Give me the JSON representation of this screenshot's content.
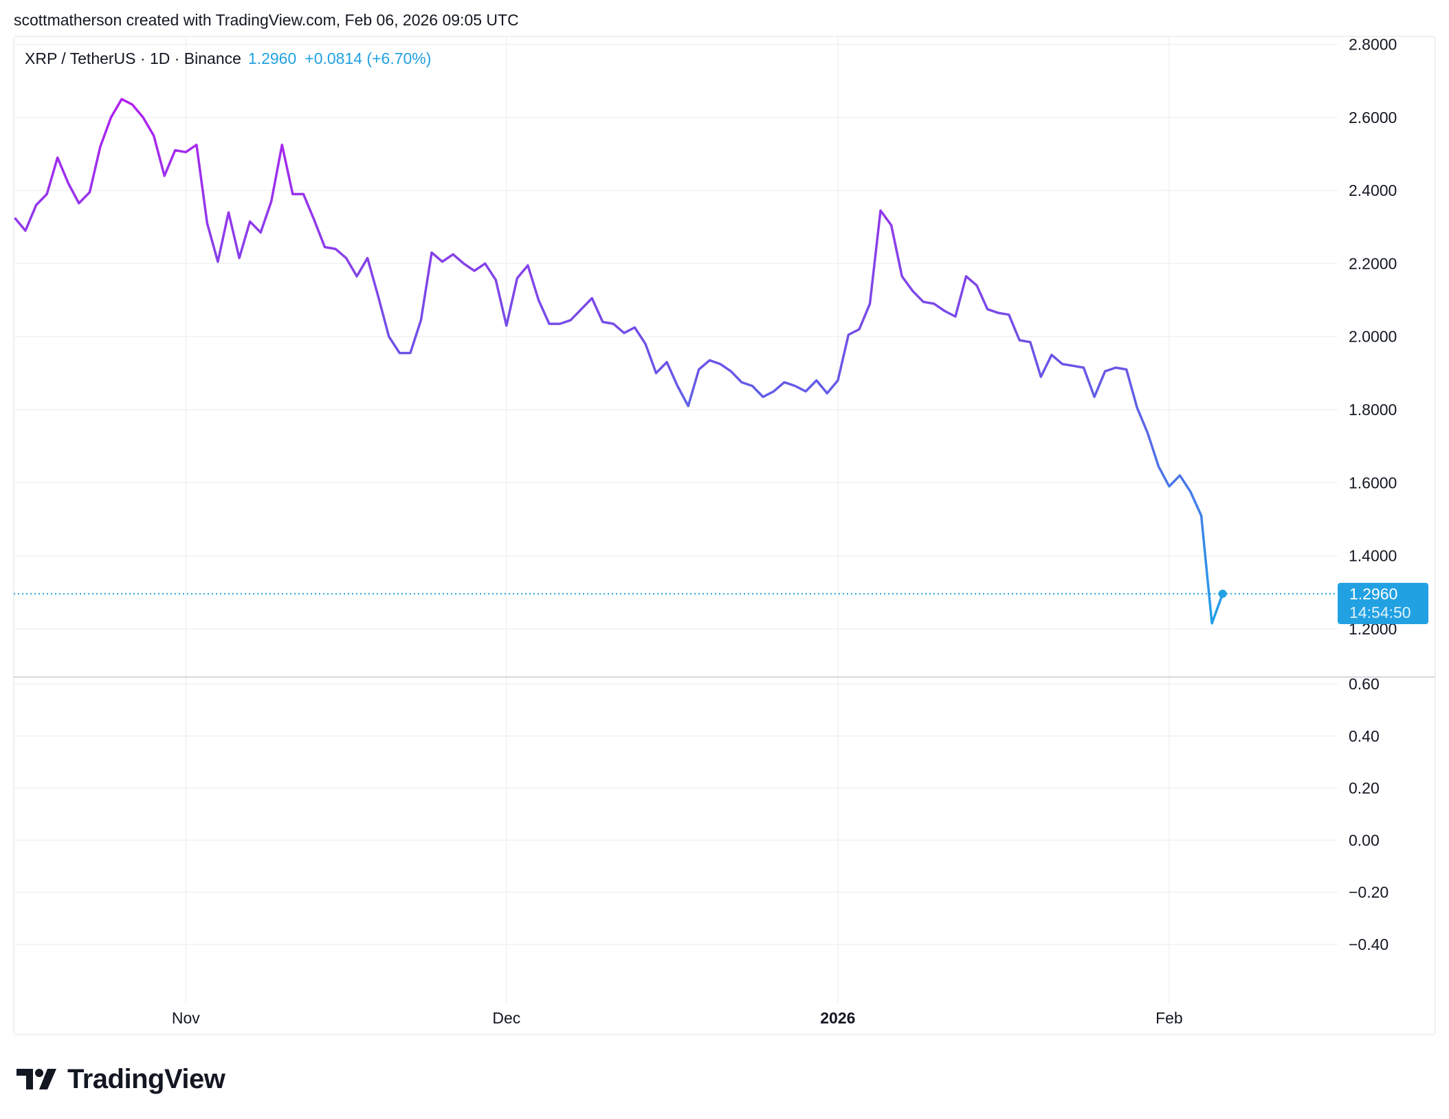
{
  "credit": "scottmatherson created with TradingView.com, Feb 06, 2026 09:05 UTC",
  "legend": {
    "symbol": "XRP / TetherUS · 1D · Binance",
    "last": "1.2960",
    "change": "+0.0814 (+6.70%)"
  },
  "price_tag": {
    "price": "1.2960",
    "countdown": "14:54:50"
  },
  "logo": {
    "text": "TradingView"
  },
  "colors": {
    "line_high": "#b21ff0",
    "line_mid": "#6b55e6",
    "line_low": "#1fa3e8",
    "accent": "#22a1e2",
    "grid": "#f0f1f3"
  },
  "chart_data": [
    {
      "type": "line",
      "title": "",
      "start_date": "2025-10-16",
      "end_date": "2026-02-06",
      "interval": "1D",
      "ylim": [
        1.1,
        2.85
      ],
      "y_ticks": [
        "2.8000",
        "2.6000",
        "2.4000",
        "2.2000",
        "2.0000",
        "1.8000",
        "1.6000",
        "1.4000",
        "1.2000"
      ],
      "x_ticks": [
        {
          "label": "Nov",
          "date": "2025-11-01",
          "bold": false
        },
        {
          "label": "Dec",
          "date": "2025-12-01",
          "bold": false
        },
        {
          "label": "2026",
          "date": "2026-01-01",
          "bold": true
        },
        {
          "label": "Feb",
          "date": "2026-02-01",
          "bold": false
        }
      ],
      "grid": true,
      "last_value": 1.296,
      "series": [
        {
          "values": [
            2.325,
            2.29,
            2.36,
            2.39,
            2.49,
            2.42,
            2.365,
            2.395,
            2.52,
            2.6,
            2.65,
            2.635,
            2.6,
            2.55,
            2.44,
            2.51,
            2.505,
            2.525,
            2.31,
            2.205,
            2.34,
            2.215,
            2.315,
            2.285,
            2.37,
            2.525,
            2.39,
            2.39,
            2.32,
            2.245,
            2.24,
            2.215,
            2.165,
            2.215,
            2.11,
            2.0,
            1.955,
            1.955,
            2.045,
            2.23,
            2.205,
            2.225,
            2.2,
            2.18,
            2.2,
            2.155,
            2.03,
            2.16,
            2.195,
            2.1,
            2.035,
            2.035,
            2.045,
            2.075,
            2.105,
            2.04,
            2.035,
            2.01,
            2.025,
            1.98,
            1.9,
            1.93,
            1.865,
            1.81,
            1.91,
            1.935,
            1.925,
            1.905,
            1.875,
            1.865,
            1.835,
            1.85,
            1.875,
            1.865,
            1.85,
            1.88,
            1.845,
            1.88,
            2.005,
            2.02,
            2.09,
            2.345,
            2.305,
            2.165,
            2.125,
            2.095,
            2.09,
            2.07,
            2.055,
            2.165,
            2.14,
            2.075,
            2.065,
            2.06,
            1.99,
            1.985,
            1.89,
            1.95,
            1.925,
            1.92,
            1.915,
            1.835,
            1.905,
            1.915,
            1.91,
            1.805,
            1.735,
            1.645,
            1.59,
            1.62,
            1.575,
            1.51,
            1.215,
            1.296
          ]
        }
      ]
    },
    {
      "type": "line",
      "title": "",
      "y_ticks": [
        "0.60",
        "0.40",
        "0.20",
        "0.00",
        "−0.20",
        "−0.40"
      ],
      "grid": true,
      "series": []
    }
  ]
}
